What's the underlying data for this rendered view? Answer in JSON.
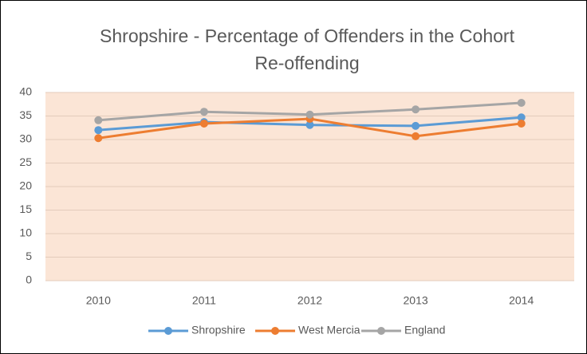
{
  "chart_data": {
    "type": "line",
    "title": "Shropshire - Percentage of Offenders in the Cohort Re-offending",
    "categories": [
      "2010",
      "2011",
      "2012",
      "2013",
      "2014"
    ],
    "series": [
      {
        "name": "Shropshire",
        "color": "#5b9bd5",
        "values": [
          32.0,
          33.7,
          33.1,
          32.9,
          34.7
        ]
      },
      {
        "name": "West Mercia",
        "color": "#ed7d31",
        "values": [
          30.3,
          33.4,
          34.4,
          30.7,
          33.4
        ]
      },
      {
        "name": "England",
        "color": "#a5a5a5",
        "values": [
          34.1,
          35.9,
          35.3,
          36.4,
          37.8
        ]
      }
    ],
    "ylim": [
      0,
      40
    ],
    "yticks": [
      0,
      5,
      10,
      15,
      20,
      25,
      30,
      35,
      40
    ],
    "grid": true,
    "plot_background": "#fbe5d6",
    "legend": "bottom"
  }
}
